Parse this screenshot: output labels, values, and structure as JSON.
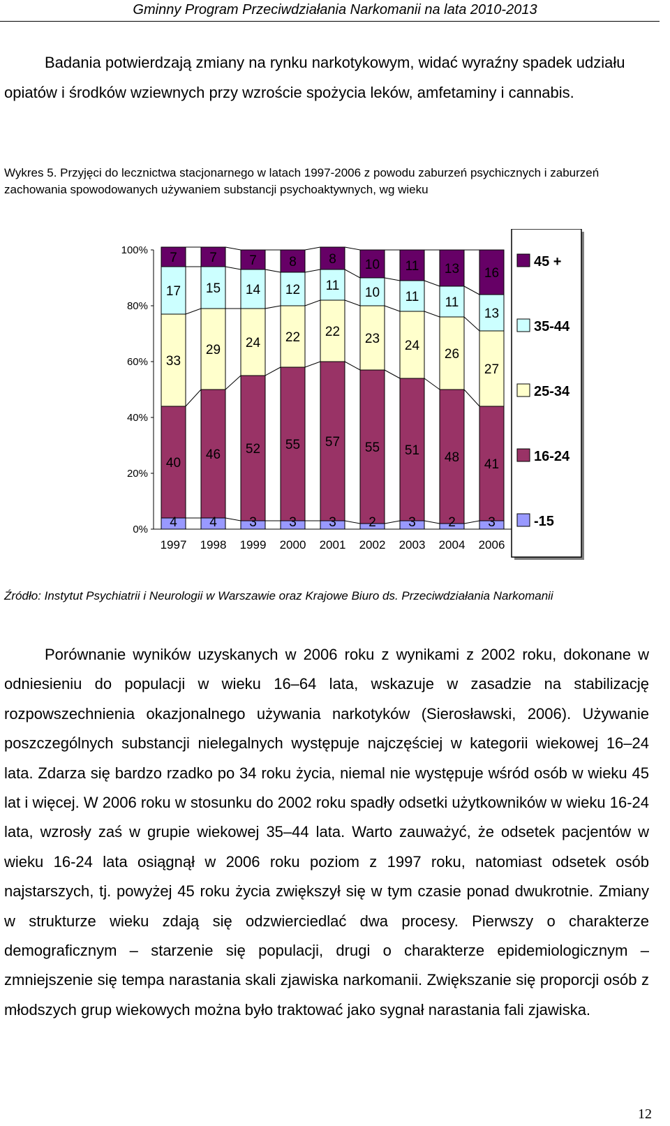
{
  "header": {
    "title": "Gminny Program Przeciwdziałania Narkomanii na lata 2010-2013"
  },
  "intro": {
    "text": "Badania potwierdzają zmiany na rynku narkotykowym, widać wyraźny spadek udziału opiatów i środków wziewnych przy wzroście spożycia leków, amfetaminy i cannabis."
  },
  "figure": {
    "label": "Wykres 5.",
    "caption": "Przyjęci do lecznictwa stacjonarnego w latach 1997-2006 z powodu zaburzeń psychicznych i zaburzeń zachowania spowodowanych używaniem substancji psychoaktywnych, wg wieku",
    "source": "Źródło: Instytut Psychiatrii i Neurologii w Warszawie oraz Krajowe Biuro ds. Przeciwdziałania Narkomanii"
  },
  "chart_data": {
    "type": "bar",
    "stacked": true,
    "percent": true,
    "categories": [
      "1997",
      "1998",
      "1999",
      "2000",
      "2001",
      "2002",
      "2003",
      "2004",
      "2006"
    ],
    "y_ticks": [
      "0%",
      "20%",
      "40%",
      "60%",
      "80%",
      "100%"
    ],
    "ylim": [
      0,
      100
    ],
    "legend_position": "right",
    "series": [
      {
        "name": "-15",
        "color": "#9999ff",
        "values": [
          4,
          4,
          3,
          3,
          3,
          2,
          3,
          2,
          3
        ]
      },
      {
        "name": "16-24",
        "color": "#993366",
        "values": [
          40,
          46,
          52,
          55,
          57,
          55,
          51,
          48,
          41
        ]
      },
      {
        "name": "25-34",
        "color": "#ffffcc",
        "values": [
          33,
          29,
          24,
          22,
          22,
          23,
          24,
          26,
          27
        ]
      },
      {
        "name": "35-44",
        "color": "#ccffff",
        "values": [
          17,
          15,
          14,
          12,
          11,
          10,
          11,
          11,
          13
        ]
      },
      {
        "name": "45 +",
        "color": "#660066",
        "values": [
          7,
          7,
          7,
          8,
          8,
          10,
          11,
          13,
          16
        ]
      }
    ]
  },
  "body": {
    "paragraph": "Porównanie wyników uzyskanych w 2006 roku z wynikami z 2002 roku, dokonane w odniesieniu do populacji w wieku 16–64 lata, wskazuje w zasadzie na stabilizację rozpowszechnienia okazjonalnego używania narkotyków (Sierosławski, 2006). Używanie poszczególnych substancji nielegalnych występuje najczęściej w kategorii wiekowej 16–24 lata. Zdarza się bardzo rzadko po 34 roku życia, niemal nie występuje wśród osób w wieku 45 lat i więcej. W 2006 roku w stosunku do 2002 roku spadły odsetki użytkowników w wieku 16-24 lata, wzrosły zaś w grupie wiekowej 35–44 lata. Warto zauważyć, że odsetek pacjentów w wieku 16-24 lata osiągnął w 2006 roku poziom z 1997 roku, natomiast odsetek osób najstarszych, tj. powyżej 45 roku życia zwiększył się w tym czasie ponad dwukrotnie. Zmiany w strukturze wieku zdają się odzwierciedlać dwa procesy. Pierwszy o charakterze demograficznym – starzenie się populacji, drugi o charakterze epidemiologicznym – zmniejszenie się tempa narastania skali zjawiska narkomanii. Zwiększanie się proporcji osób z młodszych grup wiekowych można było traktować jako sygnał narastania fali zjawiska."
  },
  "page": {
    "number": "12"
  }
}
